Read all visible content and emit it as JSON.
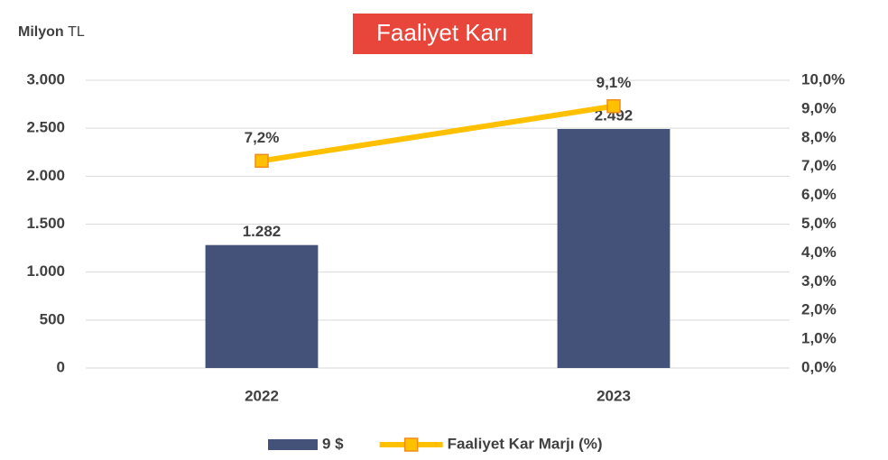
{
  "chart_data": {
    "type": "combo",
    "title": "Faaliyet Karı",
    "ylabel": [
      "Milyon",
      "TL"
    ],
    "categories": [
      "2022",
      "2023"
    ],
    "series": [
      {
        "name": "9 $",
        "type": "bar",
        "color": "#44527a",
        "values": [
          1282,
          2492
        ],
        "value_labels": [
          "1.282",
          "2.492"
        ]
      },
      {
        "name": "Faaliyet Kar Marjı (%)",
        "type": "line",
        "axis": "y2",
        "color": "#ffc000",
        "marker_edge": "#f08c1e",
        "values": [
          7.2,
          9.1
        ],
        "value_labels": [
          "7,2%",
          "9,1%"
        ]
      }
    ],
    "ylim": [
      0,
      3000
    ],
    "yticks": [
      0,
      500,
      {
        "value": 1000,
        "label": "1.000"
      },
      {
        "value": 1500,
        "label": "1.500"
      },
      {
        "value": 2000,
        "label": "2.000"
      },
      {
        "value": 2500,
        "label": "2.500"
      },
      {
        "value": 3000,
        "label": "3.000"
      }
    ],
    "y2lim": [
      0,
      10
    ],
    "y2ticks": [
      {
        "value": 0,
        "label": "0,0%"
      },
      {
        "value": 1,
        "label": "1,0%"
      },
      {
        "value": 2,
        "label": "2,0%"
      },
      {
        "value": 3,
        "label": "3,0%"
      },
      {
        "value": 4,
        "label": "4,0%"
      },
      {
        "value": 5,
        "label": "5,0%"
      },
      {
        "value": 6,
        "label": "6,0%"
      },
      {
        "value": 7,
        "label": "7,0%"
      },
      {
        "value": 8,
        "label": "8,0%"
      },
      {
        "value": 9,
        "label": "9,0%"
      },
      {
        "value": 10,
        "label": "10,0%"
      }
    ],
    "grid": true,
    "legend": "bottom"
  }
}
